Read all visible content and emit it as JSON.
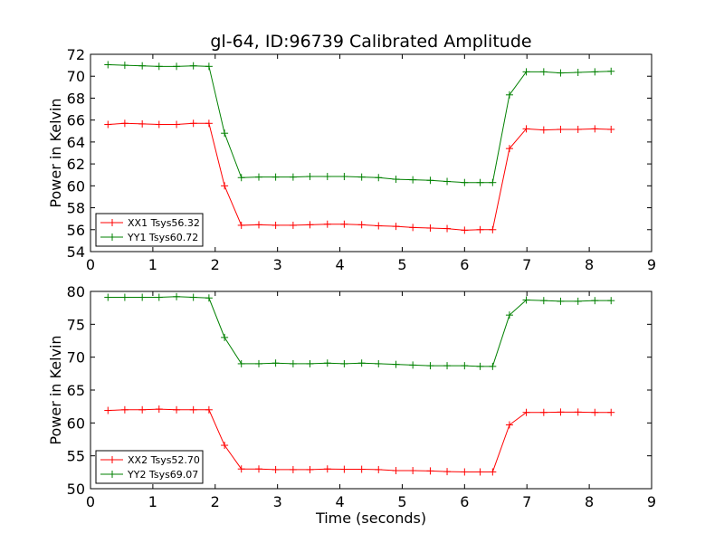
{
  "figure_title": "gl-64, ID:96739 Calibrated Amplitude",
  "colors": {
    "red": "#ff0000",
    "green": "#008000"
  },
  "chart_data": [
    {
      "type": "line",
      "title": "gl-64, ID:96739 Calibrated Amplitude",
      "xlabel": "",
      "ylabel": "Power in Kelvin",
      "xlim": [
        0,
        9
      ],
      "ylim": [
        54,
        72
      ],
      "xticks": [
        0,
        1,
        2,
        3,
        4,
        5,
        6,
        7,
        8,
        9
      ],
      "yticks": [
        54,
        56,
        58,
        60,
        62,
        64,
        66,
        68,
        70,
        72
      ],
      "grid": false,
      "legend_position": "bottom-left",
      "x": [
        0.28,
        0.55,
        0.83,
        1.1,
        1.38,
        1.65,
        1.9,
        2.15,
        2.42,
        2.7,
        2.97,
        3.25,
        3.52,
        3.8,
        4.07,
        4.35,
        4.62,
        4.9,
        5.17,
        5.45,
        5.72,
        6.0,
        6.25,
        6.45,
        6.72,
        6.99,
        7.27,
        7.54,
        7.82,
        8.09,
        8.35
      ],
      "series": [
        {
          "name": "XX1 Tsys56.32",
          "color": "#ff0000",
          "values": [
            65.6,
            65.7,
            65.65,
            65.6,
            65.6,
            65.7,
            65.7,
            60.0,
            56.4,
            56.45,
            56.4,
            56.4,
            56.45,
            56.5,
            56.5,
            56.45,
            56.35,
            56.3,
            56.2,
            56.15,
            56.1,
            55.95,
            56.0,
            56.0,
            63.4,
            65.2,
            65.1,
            65.15,
            65.15,
            65.2,
            65.15
          ]
        },
        {
          "name": "YY1 Tsys60.72",
          "color": "#008000",
          "values": [
            71.05,
            71.0,
            70.95,
            70.9,
            70.9,
            70.95,
            70.9,
            64.8,
            60.75,
            60.8,
            60.8,
            60.8,
            60.85,
            60.85,
            60.85,
            60.8,
            60.75,
            60.6,
            60.55,
            60.5,
            60.4,
            60.3,
            60.3,
            60.3,
            68.3,
            70.4,
            70.4,
            70.3,
            70.35,
            70.4,
            70.45
          ]
        }
      ]
    },
    {
      "type": "line",
      "title": "",
      "xlabel": "Time (seconds)",
      "ylabel": "Power in Kelvin",
      "xlim": [
        0,
        9
      ],
      "ylim": [
        50,
        80
      ],
      "xticks": [
        0,
        1,
        2,
        3,
        4,
        5,
        6,
        7,
        8,
        9
      ],
      "yticks": [
        50,
        55,
        60,
        65,
        70,
        75,
        80
      ],
      "grid": false,
      "legend_position": "bottom-left",
      "x": [
        0.28,
        0.55,
        0.83,
        1.1,
        1.38,
        1.65,
        1.9,
        2.15,
        2.42,
        2.7,
        2.97,
        3.25,
        3.52,
        3.8,
        4.07,
        4.35,
        4.62,
        4.9,
        5.17,
        5.45,
        5.72,
        6.0,
        6.25,
        6.45,
        6.72,
        6.99,
        7.27,
        7.54,
        7.82,
        8.09,
        8.35
      ],
      "series": [
        {
          "name": "XX2 Tsys52.70",
          "color": "#ff0000",
          "values": [
            61.9,
            62.0,
            62.0,
            62.1,
            62.0,
            62.0,
            62.0,
            56.6,
            53.0,
            53.0,
            52.9,
            52.9,
            52.9,
            53.0,
            52.95,
            52.95,
            52.9,
            52.75,
            52.75,
            52.7,
            52.6,
            52.55,
            52.55,
            52.55,
            59.7,
            61.6,
            61.6,
            61.65,
            61.65,
            61.6,
            61.6
          ]
        },
        {
          "name": "YY2 Tsys69.07",
          "color": "#008000",
          "values": [
            79.1,
            79.1,
            79.1,
            79.1,
            79.2,
            79.1,
            79.0,
            73.0,
            69.0,
            69.0,
            69.1,
            69.0,
            69.0,
            69.1,
            69.0,
            69.1,
            69.0,
            68.9,
            68.8,
            68.7,
            68.7,
            68.7,
            68.6,
            68.6,
            76.4,
            78.7,
            78.6,
            78.5,
            78.5,
            78.6,
            78.6
          ]
        }
      ]
    }
  ]
}
